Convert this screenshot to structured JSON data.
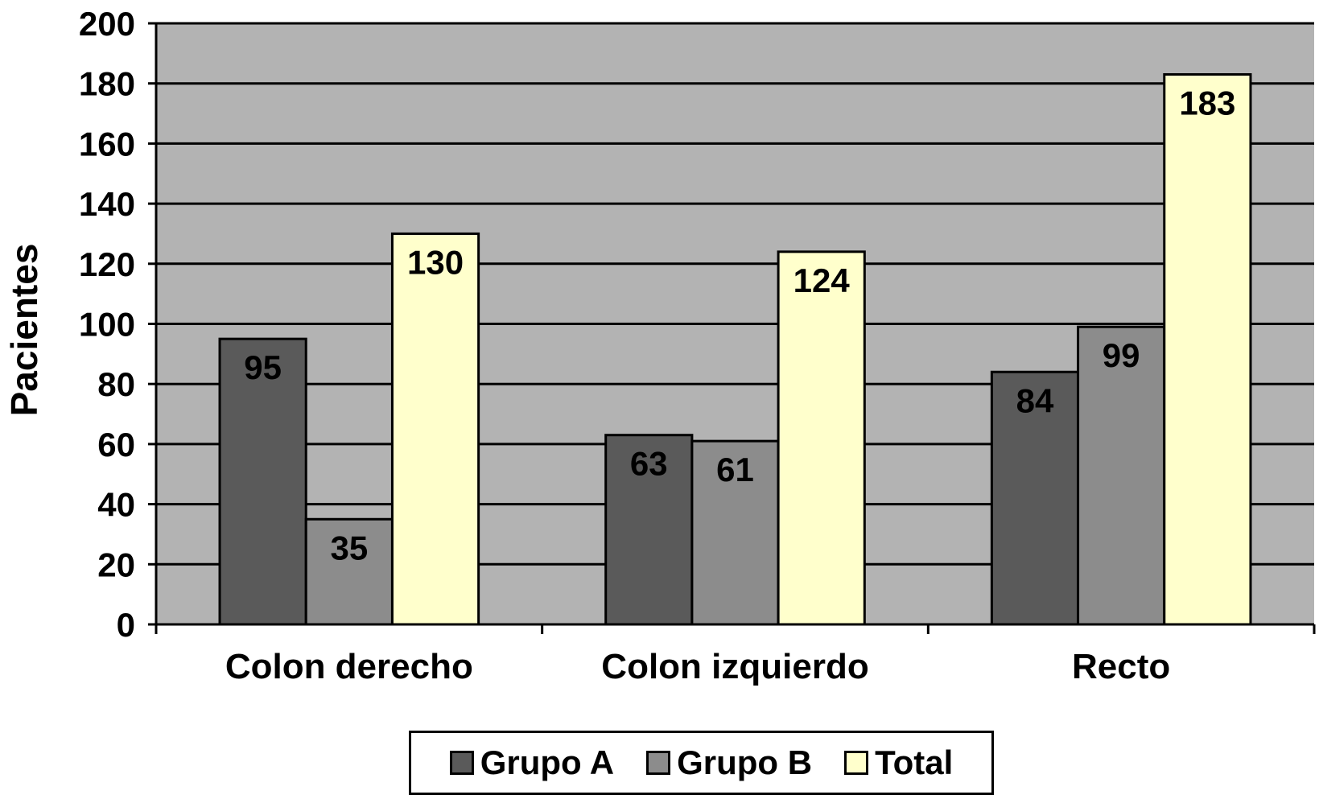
{
  "chart_data": {
    "type": "bar",
    "title": "",
    "xlabel": "",
    "ylabel": "Pacientes",
    "ylim": [
      0,
      200
    ],
    "yticks": [
      "0",
      "20",
      "40",
      "60",
      "80",
      "100",
      "120",
      "140",
      "160",
      "180",
      "200"
    ],
    "categories": [
      "Colon derecho",
      "Colon izquierdo",
      "Recto"
    ],
    "series": [
      {
        "name": "Grupo A",
        "values": [
          95,
          63,
          84
        ],
        "color": "#5a5a5a"
      },
      {
        "name": "Grupo B",
        "values": [
          35,
          61,
          99
        ],
        "color": "#8c8c8c"
      },
      {
        "name": "Total",
        "values": [
          130,
          124,
          183
        ],
        "color": "#ffffcc"
      }
    ],
    "grid": true,
    "plot_background": "#b3b3b3",
    "legend_position": "bottom"
  }
}
